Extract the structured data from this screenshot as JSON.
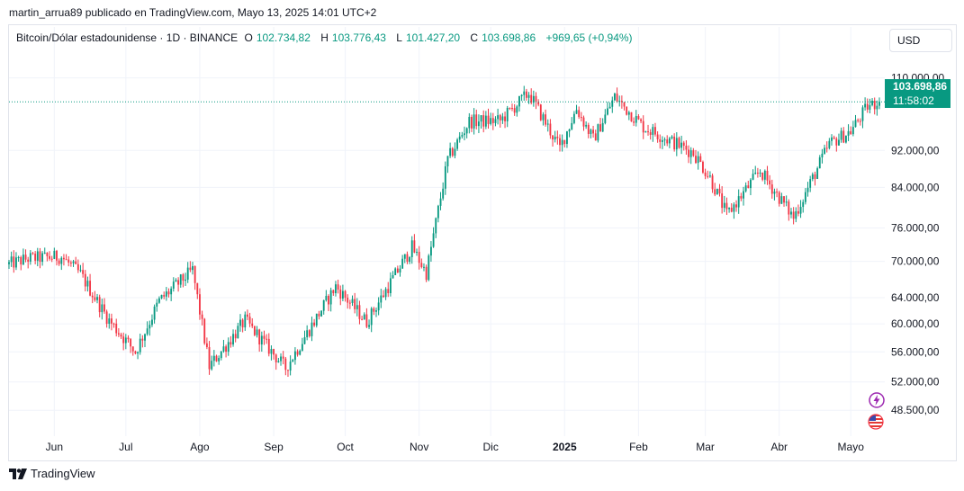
{
  "attribution": "martin_arrua89 publicado en TradingView.com, Mayo 13, 2025 14:01 UTC+2",
  "legend": {
    "symbol": "Bitcoin/Dólar estadounidense · 1D · BINANCE",
    "o_label": "O",
    "o_value": "102.734,82",
    "h_label": "H",
    "h_value": "103.776,43",
    "l_label": "L",
    "l_value": "101.427,20",
    "c_label": "C",
    "c_value": "103.698,86",
    "change": "+969,65 (+0,94%)"
  },
  "currency": "USD",
  "last_price": {
    "price": "103.698,86",
    "countdown": "11:58:02"
  },
  "footer": {
    "brand": "TradingView"
  },
  "colors": {
    "up": "#089981",
    "down": "#f23645",
    "grid": "#f0f3fa",
    "text": "#131722",
    "event_purple": "#9c27b0"
  },
  "icons": [
    "lightning-event-icon",
    "us-flag-event-icon",
    "tradingview-logo-icon"
  ],
  "chart_data": {
    "type": "candlestick",
    "title": "Bitcoin/Dólar estadounidense · 1D · BINANCE",
    "y_scale": "log",
    "ylim": [
      45500,
      118000
    ],
    "y_ticks": [
      {
        "value": 110000,
        "label": "110.000,00"
      },
      {
        "value": 92000,
        "label": "92.000,00"
      },
      {
        "value": 84000,
        "label": "84.000,00"
      },
      {
        "value": 76000,
        "label": "76.000,00"
      },
      {
        "value": 70000,
        "label": "70.000,00"
      },
      {
        "value": 64000,
        "label": "64.000,00"
      },
      {
        "value": 60000,
        "label": "60.000,00"
      },
      {
        "value": 56000,
        "label": "56.000,00"
      },
      {
        "value": 52000,
        "label": "52.000,00"
      },
      {
        "value": 48500,
        "label": "48.500,00"
      }
    ],
    "x_ticks": [
      {
        "label": "Jun",
        "date": "2024-06-01",
        "bold": false
      },
      {
        "label": "Jul",
        "date": "2024-07-01",
        "bold": false
      },
      {
        "label": "Ago",
        "date": "2024-08-01",
        "bold": false
      },
      {
        "label": "Sep",
        "date": "2024-09-01",
        "bold": false
      },
      {
        "label": "Oct",
        "date": "2024-10-01",
        "bold": false
      },
      {
        "label": "Nov",
        "date": "2024-11-01",
        "bold": false
      },
      {
        "label": "Dic",
        "date": "2024-12-01",
        "bold": false
      },
      {
        "label": "2025",
        "date": "2025-01-01",
        "bold": true
      },
      {
        "label": "Feb",
        "date": "2025-02-01",
        "bold": false
      },
      {
        "label": "Mar",
        "date": "2025-03-01",
        "bold": false
      },
      {
        "label": "Abr",
        "date": "2025-04-01",
        "bold": false
      },
      {
        "label": "Mayo",
        "date": "2025-05-01",
        "bold": false
      }
    ],
    "last_price_line": 103698.86,
    "close_path": [
      {
        "date": "2024-05-13",
        "close": 69500
      },
      {
        "date": "2024-05-21",
        "close": 70500
      },
      {
        "date": "2024-06-04",
        "close": 70800
      },
      {
        "date": "2024-06-12",
        "close": 67800
      },
      {
        "date": "2024-06-24",
        "close": 60500
      },
      {
        "date": "2024-07-05",
        "close": 56000
      },
      {
        "date": "2024-07-15",
        "close": 63500
      },
      {
        "date": "2024-07-29",
        "close": 68500
      },
      {
        "date": "2024-08-05",
        "close": 54000
      },
      {
        "date": "2024-08-20",
        "close": 60500
      },
      {
        "date": "2024-09-06",
        "close": 53800
      },
      {
        "date": "2024-09-27",
        "close": 65800
      },
      {
        "date": "2024-10-10",
        "close": 60300
      },
      {
        "date": "2024-10-29",
        "close": 72500
      },
      {
        "date": "2024-11-04",
        "close": 68000
      },
      {
        "date": "2024-11-13",
        "close": 90000
      },
      {
        "date": "2024-11-22",
        "close": 98800
      },
      {
        "date": "2024-12-05",
        "close": 99000
      },
      {
        "date": "2024-12-17",
        "close": 106000
      },
      {
        "date": "2024-12-30",
        "close": 92500
      },
      {
        "date": "2025-01-06",
        "close": 102000
      },
      {
        "date": "2025-01-13",
        "close": 94500
      },
      {
        "date": "2025-01-22",
        "close": 105000
      },
      {
        "date": "2025-02-03",
        "close": 97500
      },
      {
        "date": "2025-02-24",
        "close": 91500
      },
      {
        "date": "2025-03-03",
        "close": 86000
      },
      {
        "date": "2025-03-10",
        "close": 78500
      },
      {
        "date": "2025-03-24",
        "close": 87500
      },
      {
        "date": "2025-04-07",
        "close": 78000
      },
      {
        "date": "2025-04-22",
        "close": 93500
      },
      {
        "date": "2025-05-01",
        "close": 96500
      },
      {
        "date": "2025-05-08",
        "close": 102500
      },
      {
        "date": "2025-05-13",
        "close": 103698.86
      }
    ]
  }
}
